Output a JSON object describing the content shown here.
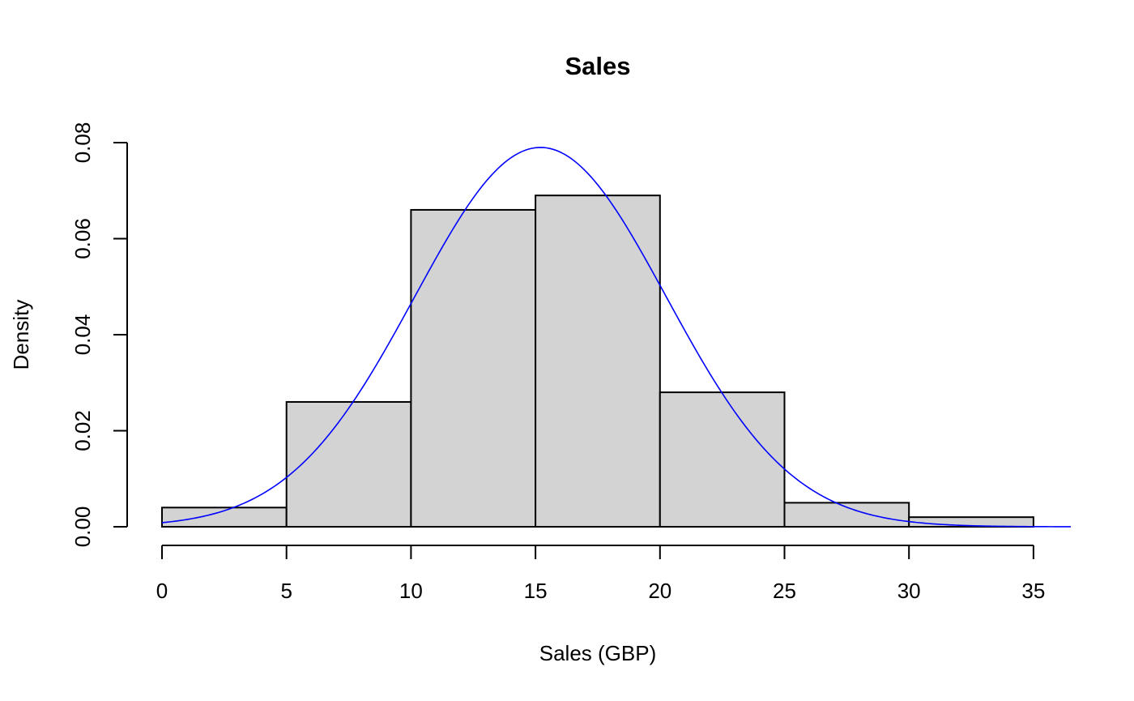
{
  "chart_data": {
    "type": "bar",
    "title": "Sales",
    "xlabel": "Sales (GBP)",
    "ylabel": "Density",
    "bin_edges": [
      0,
      5,
      10,
      15,
      20,
      25,
      30,
      35
    ],
    "values": [
      0.004,
      0.026,
      0.066,
      0.069,
      0.028,
      0.005,
      0.002
    ],
    "xlim": [
      0,
      36.5
    ],
    "ylim": [
      0,
      0.08
    ],
    "x_ticks": [
      "0",
      "5",
      "10",
      "15",
      "20",
      "25",
      "30",
      "35"
    ],
    "y_ticks": [
      "0.00",
      "0.02",
      "0.04",
      "0.06",
      "0.08"
    ],
    "grid": false,
    "density_curve": {
      "mean": 15.2,
      "sd": 5.05,
      "color": "#0000ff"
    },
    "colors": {
      "bar_fill": "#d3d3d3",
      "bar_stroke": "#000000"
    }
  }
}
